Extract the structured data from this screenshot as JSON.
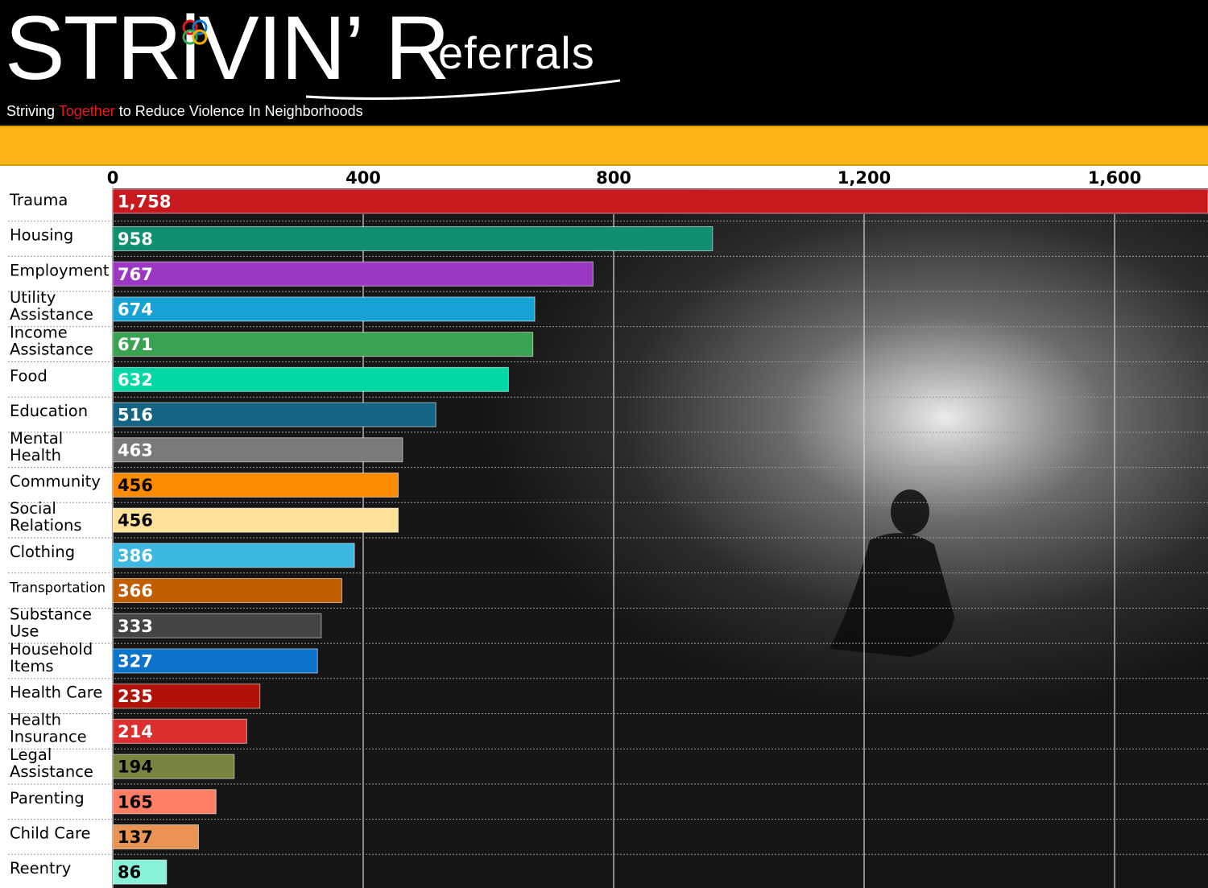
{
  "header": {
    "brand_strivin": "STRiVIN’",
    "brand_r": "R",
    "brand_rest": "eferrals",
    "tagline_pre": "Striving ",
    "tagline_accent": "Together",
    "tagline_post": " to Reduce Violence In Neighborhoods",
    "logo_icon": "interlocking-rings-icon"
  },
  "colors": {
    "header_bg": "#000000",
    "band": "#fbb516",
    "label_panel": "#ffffff"
  },
  "chart_data": {
    "type": "bar",
    "orientation": "horizontal",
    "title": "",
    "xlabel": "",
    "ylabel": "",
    "xlim": [
      0,
      1750
    ],
    "xticks": [
      0,
      400,
      800,
      1200,
      1600
    ],
    "xtick_labels": [
      "0",
      "400",
      "800",
      "1,200",
      "1,600"
    ],
    "grid": true,
    "legend": "none",
    "categories": [
      {
        "lines": [
          "Trauma"
        ]
      },
      {
        "lines": [
          "Housing"
        ]
      },
      {
        "lines": [
          "Employment"
        ]
      },
      {
        "lines": [
          "Utility",
          "Assistance"
        ]
      },
      {
        "lines": [
          "Income",
          "Assistance"
        ]
      },
      {
        "lines": [
          "Food"
        ]
      },
      {
        "lines": [
          "Education"
        ]
      },
      {
        "lines": [
          "Mental",
          "Health"
        ]
      },
      {
        "lines": [
          "Community"
        ]
      },
      {
        "lines": [
          "Social",
          "Relations"
        ]
      },
      {
        "lines": [
          "Clothing"
        ]
      },
      {
        "lines": [
          "Transportation"
        ],
        "narrow": true
      },
      {
        "lines": [
          "Substance",
          "Use"
        ]
      },
      {
        "lines": [
          "Household",
          "Items"
        ]
      },
      {
        "lines": [
          "Health Care"
        ]
      },
      {
        "lines": [
          "Health",
          "Insurance"
        ]
      },
      {
        "lines": [
          "Legal",
          "Assistance"
        ]
      },
      {
        "lines": [
          "Parenting"
        ]
      },
      {
        "lines": [
          "Child Care"
        ]
      },
      {
        "lines": [
          "Reentry"
        ]
      }
    ],
    "values": [
      1758,
      958,
      767,
      674,
      671,
      632,
      516,
      463,
      456,
      456,
      386,
      366,
      333,
      327,
      235,
      214,
      194,
      165,
      137,
      86
    ],
    "value_labels": [
      "1,758",
      "958",
      "767",
      "674",
      "671",
      "632",
      "516",
      "463",
      "456",
      "456",
      "386",
      "366",
      "333",
      "327",
      "235",
      "214",
      "194",
      "165",
      "137",
      "86"
    ],
    "bar_colors": [
      "#c8191e",
      "#0f8f6f",
      "#9a38c4",
      "#17a2d4",
      "#3aa352",
      "#00d9a6",
      "#146483",
      "#7a7a7a",
      "#ff8c00",
      "#ffe199",
      "#3db8e0",
      "#c25e00",
      "#444444",
      "#0a73cc",
      "#b01208",
      "#dd2f2f",
      "#7a8441",
      "#ff7e66",
      "#e99355",
      "#8af2d8"
    ],
    "value_text_colors": [
      "#ffffff",
      "#ffffff",
      "#ffffff",
      "#ffffff",
      "#ffffff",
      "#ffffff",
      "#ffffff",
      "#ffffff",
      "#000000",
      "#000000",
      "#ffffff",
      "#ffffff",
      "#ffffff",
      "#ffffff",
      "#ffffff",
      "#ffffff",
      "#000000",
      "#000000",
      "#000000",
      "#000000"
    ]
  }
}
